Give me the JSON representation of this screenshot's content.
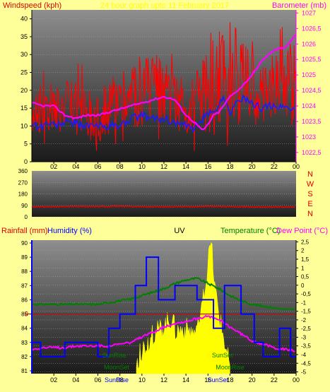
{
  "colors": {
    "background": "#ffff99",
    "plot_dark": "#1c1c1c",
    "plot_light": "#8c8c8c",
    "red_title": "#e00000",
    "magenta": "#ff00ff",
    "blue": "#0000ff",
    "green": "#008000",
    "yellow": "#ffff00",
    "wind": "#ff0000",
    "baro": "#ff00ff",
    "avgwind": "#1a1aff",
    "direction": "#ee0000",
    "humidity": "#0000ff",
    "temperature": "#008000",
    "dewpoint": "#ff00ff",
    "uv": "#ffff00",
    "rain": "#cc0000"
  },
  "header": {
    "title_left": "Windspeed (kph)",
    "title_center": "24 hour graph upto 11 February 2017",
    "title_right": "Barometer (mb)"
  },
  "labels": {
    "rainfall": "Rainfall (mm)",
    "humidity": "Humidity (%)",
    "uv": "UV",
    "temperature": "Temperature (°C)",
    "dewpoint": "Dew Point (°C)",
    "sunrise": "SunRise",
    "sunset": "SunSet",
    "moonset": "MoonSet",
    "moonrise": "MoonRise",
    "rain_zero": "0"
  },
  "compass": [
    "N",
    "W",
    "S",
    "E",
    "N"
  ],
  "chart_data": [
    {
      "type": "line",
      "x_ticks": [
        "02",
        "04",
        "06",
        "08",
        "10",
        "12",
        "14",
        "16",
        "18",
        "20",
        "22",
        "00"
      ],
      "y_left": {
        "ticks": [
          0,
          5,
          10,
          15,
          20,
          25,
          30,
          35,
          40
        ],
        "range": [
          0,
          42.5
        ]
      },
      "y_right": {
        "ticks": [
          "1022,5",
          "1023",
          "1023,5",
          "1024",
          "1024,5",
          "1025",
          "1025,5",
          "1026",
          "1026,5",
          "1027"
        ],
        "range": [
          1022.2,
          1027.1
        ]
      },
      "x_range": [
        0,
        24
      ],
      "series": [
        {
          "key": "wind",
          "x": [
            0,
            1,
            2,
            3,
            4,
            5,
            6,
            7,
            8,
            9,
            10,
            11,
            12,
            13,
            14,
            15,
            16,
            17,
            18,
            19,
            20,
            21,
            22,
            23,
            24
          ],
          "y": [
            15,
            15,
            16,
            15,
            15,
            14,
            13,
            15,
            16,
            17,
            18,
            19,
            19,
            17,
            15,
            17,
            19,
            23,
            26,
            23,
            21,
            19,
            21,
            22,
            22
          ],
          "spread": [
            9,
            9,
            9,
            9,
            10,
            10,
            10,
            10,
            12,
            13,
            14,
            13,
            11,
            10,
            9,
            11,
            15,
            19,
            19,
            16,
            13,
            12,
            13,
            14,
            14
          ]
        },
        {
          "key": "avgwind",
          "x": [
            0,
            0.5,
            1,
            1.5,
            2,
            3,
            4,
            5,
            6,
            7,
            8,
            9,
            10,
            11,
            12,
            13,
            14,
            14.5,
            15,
            15.5,
            16,
            17,
            17.5,
            18,
            19,
            20,
            21,
            22,
            22.5,
            23,
            23.5,
            24
          ],
          "y": [
            11,
            10,
            10,
            11,
            10,
            11,
            11,
            10,
            10,
            10,
            10,
            12,
            13,
            12,
            12,
            11,
            10,
            9,
            10,
            12,
            13,
            16,
            18,
            14,
            18,
            16,
            15,
            16,
            15,
            16,
            14,
            16
          ]
        },
        {
          "key": "baro",
          "axis": "right",
          "x": [
            0,
            1,
            2,
            3,
            4,
            5,
            6,
            7,
            8,
            9,
            10,
            11,
            12,
            13,
            14,
            15,
            15.5,
            16,
            16.5,
            17,
            18,
            19,
            20,
            21,
            22,
            23,
            24
          ],
          "y": [
            1024.1,
            1024.0,
            1024.0,
            1023.7,
            1023.6,
            1023.7,
            1023.7,
            1023.8,
            1023.9,
            1024.0,
            1024.1,
            1024.2,
            1024.3,
            1024.2,
            1023.7,
            1023.4,
            1023.2,
            1023.4,
            1023.7,
            1023.8,
            1024.3,
            1024.6,
            1025.0,
            1025.5,
            1025.8,
            1025.9,
            1026.3
          ]
        }
      ]
    },
    {
      "type": "line",
      "x_range": [
        0,
        24
      ],
      "y_ticks": [
        0,
        90,
        180,
        270,
        360
      ],
      "y_range": [
        0,
        360
      ],
      "series": [
        {
          "key": "direction",
          "x": [
            0,
            2,
            4,
            6,
            8,
            10,
            12,
            14,
            16,
            18,
            20,
            22,
            24
          ],
          "y": [
            80,
            78,
            82,
            80,
            83,
            80,
            78,
            80,
            82,
            80,
            78,
            76,
            78
          ]
        }
      ]
    },
    {
      "type": "line",
      "x_ticks": [
        "02",
        "04",
        "06",
        "08",
        "10",
        "12",
        "14",
        "16",
        "18",
        "20",
        "22",
        "00"
      ],
      "x_range": [
        0,
        24
      ],
      "y_left": {
        "ticks": [
          81,
          82,
          83,
          84,
          85,
          86,
          87,
          88,
          89,
          90
        ],
        "range": [
          80.8,
          90.2
        ]
      },
      "y_right": {
        "ticks": [
          "2,5",
          "2",
          "1,5",
          "1",
          "0,5",
          "0",
          "-0,5",
          "-1",
          "-1,5",
          "-2",
          "-2,5",
          "-3",
          "-3,5",
          "-4",
          "-4,5",
          "-5"
        ],
        "range": [
          -5.1,
          2.6
        ]
      },
      "rain_zero_value": 85.0,
      "series": [
        {
          "key": "humidity",
          "x": [
            0,
            0.8,
            0.8,
            3,
            3,
            6,
            6,
            7,
            7,
            8,
            8,
            9.4,
            9.4,
            10.4,
            10.4,
            11.5,
            11.5,
            13,
            13,
            15,
            15,
            16.5,
            16.5,
            17.5,
            17.5,
            19,
            19,
            20.2,
            20.2,
            21,
            21,
            22.5,
            22.5,
            23.5,
            23.5,
            24
          ],
          "y": [
            83,
            83,
            82,
            82,
            83,
            83,
            82,
            82,
            84,
            84,
            85,
            85,
            87,
            87,
            89,
            89,
            86,
            86,
            87,
            87,
            86,
            86,
            84,
            84,
            87,
            87,
            85,
            85,
            83,
            83,
            82,
            82,
            84,
            84,
            82,
            82
          ]
        },
        {
          "key": "temperature",
          "axis": "right",
          "x": [
            0,
            2,
            4,
            6,
            8,
            9,
            10,
            11,
            12,
            13,
            14,
            15,
            16,
            17,
            18,
            19,
            20,
            21,
            22,
            23,
            24
          ],
          "y": [
            -1.1,
            -1.1,
            -1.1,
            -1.1,
            -0.9,
            -0.8,
            -0.6,
            -0.4,
            -0.2,
            0.1,
            0.3,
            0.4,
            0.1,
            -0.2,
            -0.6,
            -0.9,
            -1.1,
            -1.2,
            -1.3,
            -1.4,
            -1.4
          ]
        },
        {
          "key": "dewpoint",
          "axis": "right",
          "x": [
            0,
            1,
            2,
            3,
            4,
            5,
            6,
            7,
            8,
            9,
            10,
            11,
            12,
            13,
            14,
            15,
            16,
            17,
            18,
            19,
            20,
            21,
            22,
            23,
            24
          ],
          "y": [
            -3.7,
            -3.6,
            -3.6,
            -3.6,
            -3.5,
            -3.5,
            -3.5,
            -3.5,
            -3.4,
            -3.3,
            -3.0,
            -2.7,
            -2.4,
            -2.2,
            -2.1,
            -1.9,
            -1.8,
            -2.0,
            -2.4,
            -2.8,
            -3.2,
            -3.4,
            -3.6,
            -3.7,
            -3.8
          ]
        },
        {
          "key": "uv",
          "x": [
            9.5,
            10,
            11,
            12,
            12.8,
            13,
            14,
            15,
            15.5,
            16,
            16.3,
            16.6,
            17,
            17.5,
            18
          ],
          "y": [
            81.5,
            82.5,
            83.5,
            84.2,
            84.8,
            83.8,
            84.0,
            83.6,
            85.5,
            88.5,
            90.0,
            87.0,
            85.0,
            83.0,
            81.3
          ]
        }
      ],
      "events": [
        {
          "label": "sunrise",
          "x": 7.5,
          "row": 1
        },
        {
          "label": "sunset",
          "x": 17.3,
          "row": 1
        },
        {
          "label": "moonset",
          "x": 7.7,
          "row": 2
        },
        {
          "label": "moonrise",
          "x": 18.0,
          "row": 2
        },
        {
          "label": "sunrise",
          "x": 7.7,
          "row": 3
        },
        {
          "label": "sunset",
          "x": 16.9,
          "row": 3
        }
      ]
    }
  ]
}
